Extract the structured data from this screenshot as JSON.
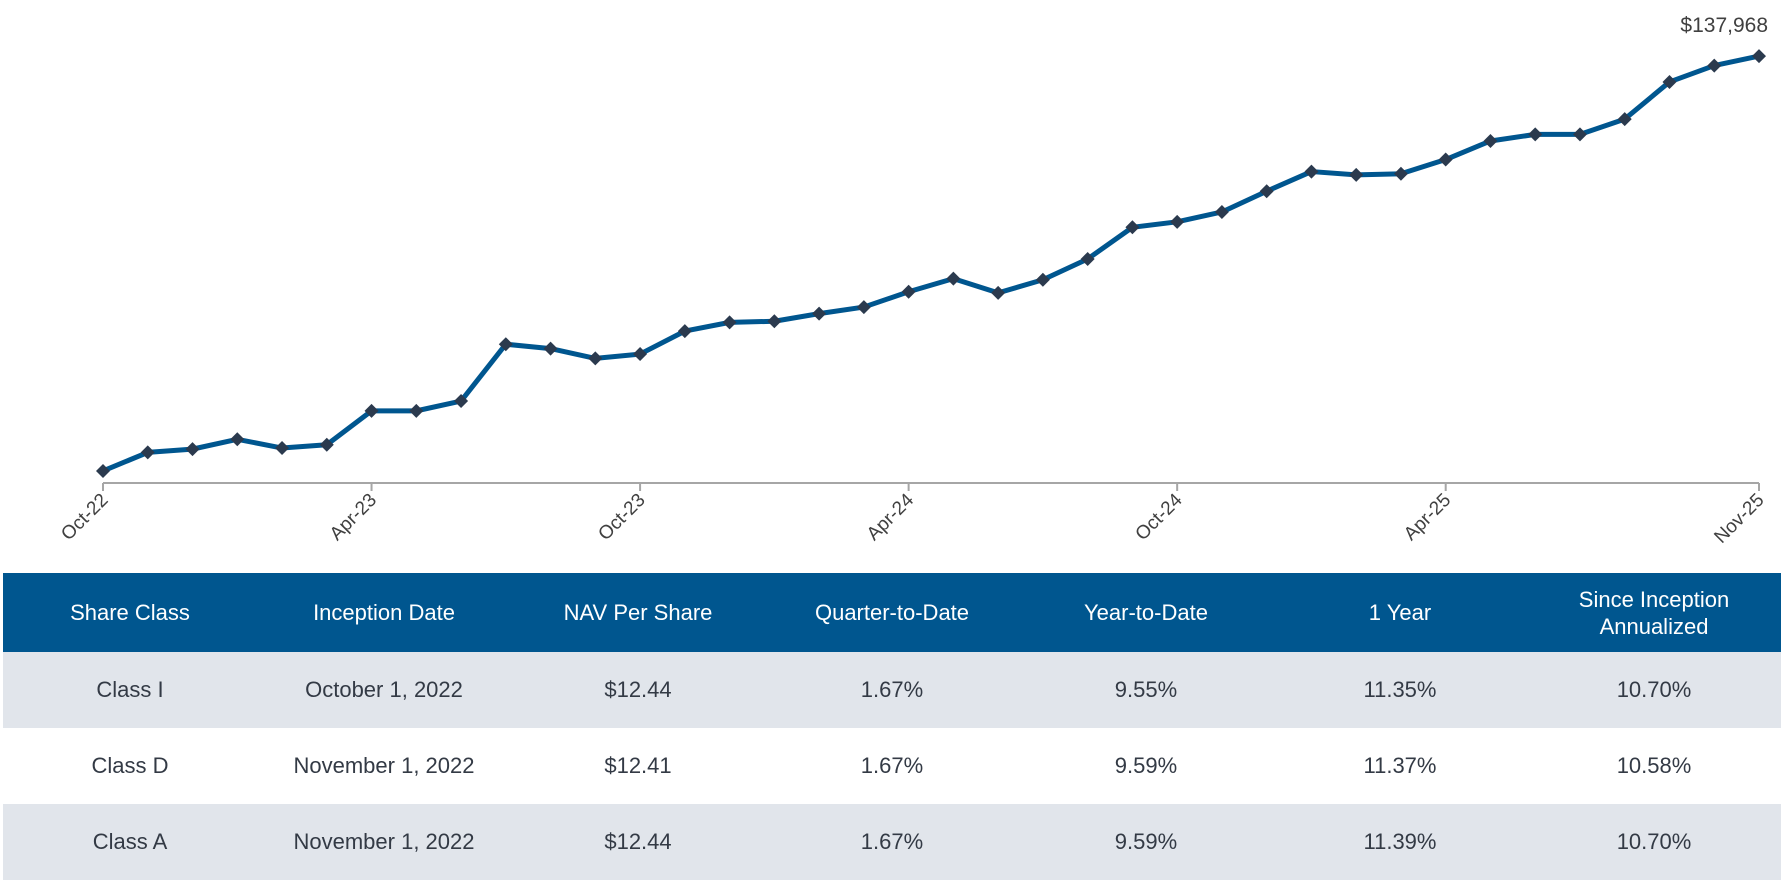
{
  "chart_data": {
    "type": "line",
    "title": "",
    "xlabel": "",
    "ylabel": "",
    "grid": false,
    "legend": "none",
    "line_color": "#00568f",
    "marker_color": "#2b3a4e",
    "marker": "diamond",
    "x": [
      "Oct-22",
      "Nov-22",
      "Dec-22",
      "Jan-23",
      "Feb-23",
      "Mar-23",
      "Apr-23",
      "May-23",
      "Jun-23",
      "Jul-23",
      "Aug-23",
      "Sep-23",
      "Oct-23",
      "Nov-23",
      "Dec-23",
      "Jan-24",
      "Feb-24",
      "Mar-24",
      "Apr-24",
      "May-24",
      "Jun-24",
      "Jul-24",
      "Aug-24",
      "Sep-24",
      "Oct-24",
      "Nov-24",
      "Dec-24",
      "Jan-25",
      "Feb-25",
      "Mar-25",
      "Apr-25",
      "May-25",
      "Jun-25",
      "Jul-25",
      "Aug-25",
      "Sep-25",
      "Oct-25",
      "Nov-25"
    ],
    "values": [
      100000,
      101700,
      102000,
      102900,
      102100,
      102400,
      105500,
      105500,
      106400,
      111600,
      111200,
      110300,
      110700,
      112800,
      113600,
      113700,
      114400,
      115000,
      116400,
      117600,
      116300,
      117500,
      119400,
      122300,
      122800,
      123700,
      125600,
      127400,
      127100,
      127200,
      128500,
      130200,
      130800,
      130800,
      132200,
      135600,
      137100,
      137968
    ],
    "x_tick_labels": [
      "Oct-22",
      "Apr-23",
      "Oct-23",
      "Apr-24",
      "Oct-24",
      "Apr-25",
      "Nov-25"
    ],
    "ylim": [
      98900,
      143100
    ],
    "end_label": "$137,968"
  },
  "table": {
    "headers": [
      "Share Class",
      "Inception Date",
      "NAV Per Share",
      "Quarter-to-Date",
      "Year-to-Date",
      "1 Year",
      "Since Inception Annualized"
    ],
    "rows": [
      [
        "Class I",
        "October 1, 2022",
        "$12.44",
        "1.67%",
        "9.55%",
        "11.35%",
        "10.70%"
      ],
      [
        "Class D",
        "November 1, 2022",
        "$12.41",
        "1.67%",
        "9.59%",
        "11.37%",
        "10.58%"
      ],
      [
        "Class A",
        "November 1, 2022",
        "$12.44",
        "1.67%",
        "9.59%",
        "11.39%",
        "10.70%"
      ]
    ],
    "header_color": "#00568f",
    "stripe_color": "#e1e5eb"
  }
}
